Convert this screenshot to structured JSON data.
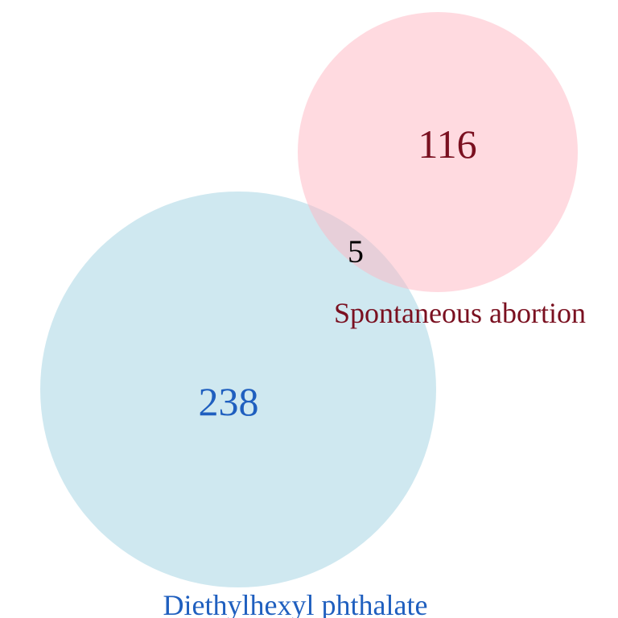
{
  "sets": [
    {
      "id": "phthalate",
      "label": "Diethylhexyl phthalate",
      "unique_count": "238",
      "fill_color": "#add8e6",
      "label_color": "#1f5fbf",
      "count_color": "#1f5fbf"
    },
    {
      "id": "abortion",
      "label": "Spontaneous abortion",
      "unique_count": "116",
      "fill_color": "#ffb6c1",
      "label_color": "#7a1020",
      "count_color": "#7a1020"
    }
  ],
  "intersection": {
    "count": "5",
    "color": "#000000"
  }
}
